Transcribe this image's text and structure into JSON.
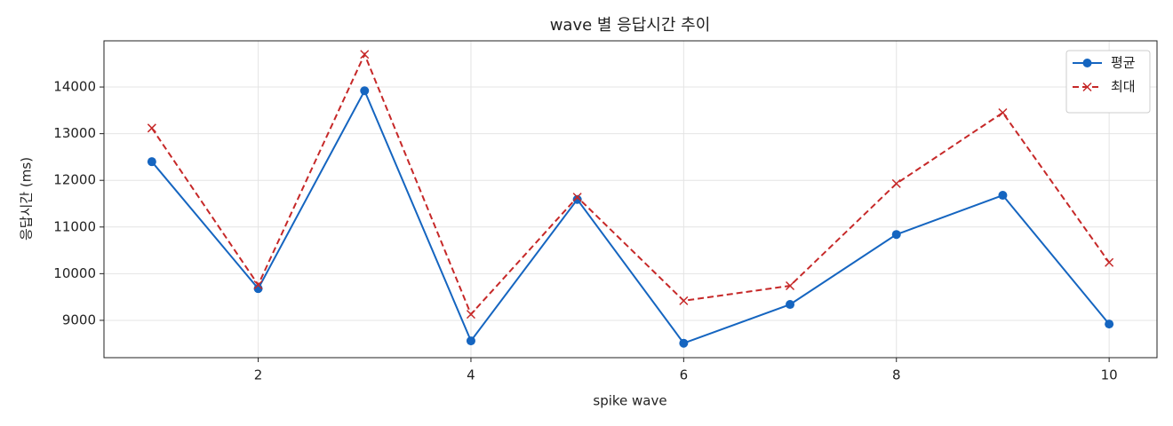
{
  "chart_data": {
    "type": "line",
    "title": "wave 별 응답시간 추이",
    "xlabel": "spike wave",
    "ylabel": "응답시간 (ms)",
    "x": [
      1,
      2,
      3,
      4,
      5,
      6,
      7,
      8,
      9,
      10
    ],
    "series": [
      {
        "name": "평균",
        "color": "#1565c0",
        "marker": "o",
        "linestyle": "solid",
        "values": [
          12400,
          9680,
          13920,
          8560,
          11590,
          8510,
          9340,
          10840,
          11680,
          8920
        ]
      },
      {
        "name": "최대",
        "color": "#c62828",
        "marker": "x",
        "linestyle": "dashed",
        "values": [
          13120,
          9760,
          14700,
          9130,
          11640,
          9420,
          9740,
          11930,
          13450,
          10240
        ]
      }
    ],
    "xlim": [
      0.55,
      10.45
    ],
    "xticks": [
      2,
      4,
      6,
      8,
      10
    ],
    "ylim": [
      8200,
      14990
    ],
    "yticks": [
      9000,
      10000,
      11000,
      12000,
      13000,
      14000
    ],
    "grid": true,
    "legend": "upper right"
  }
}
